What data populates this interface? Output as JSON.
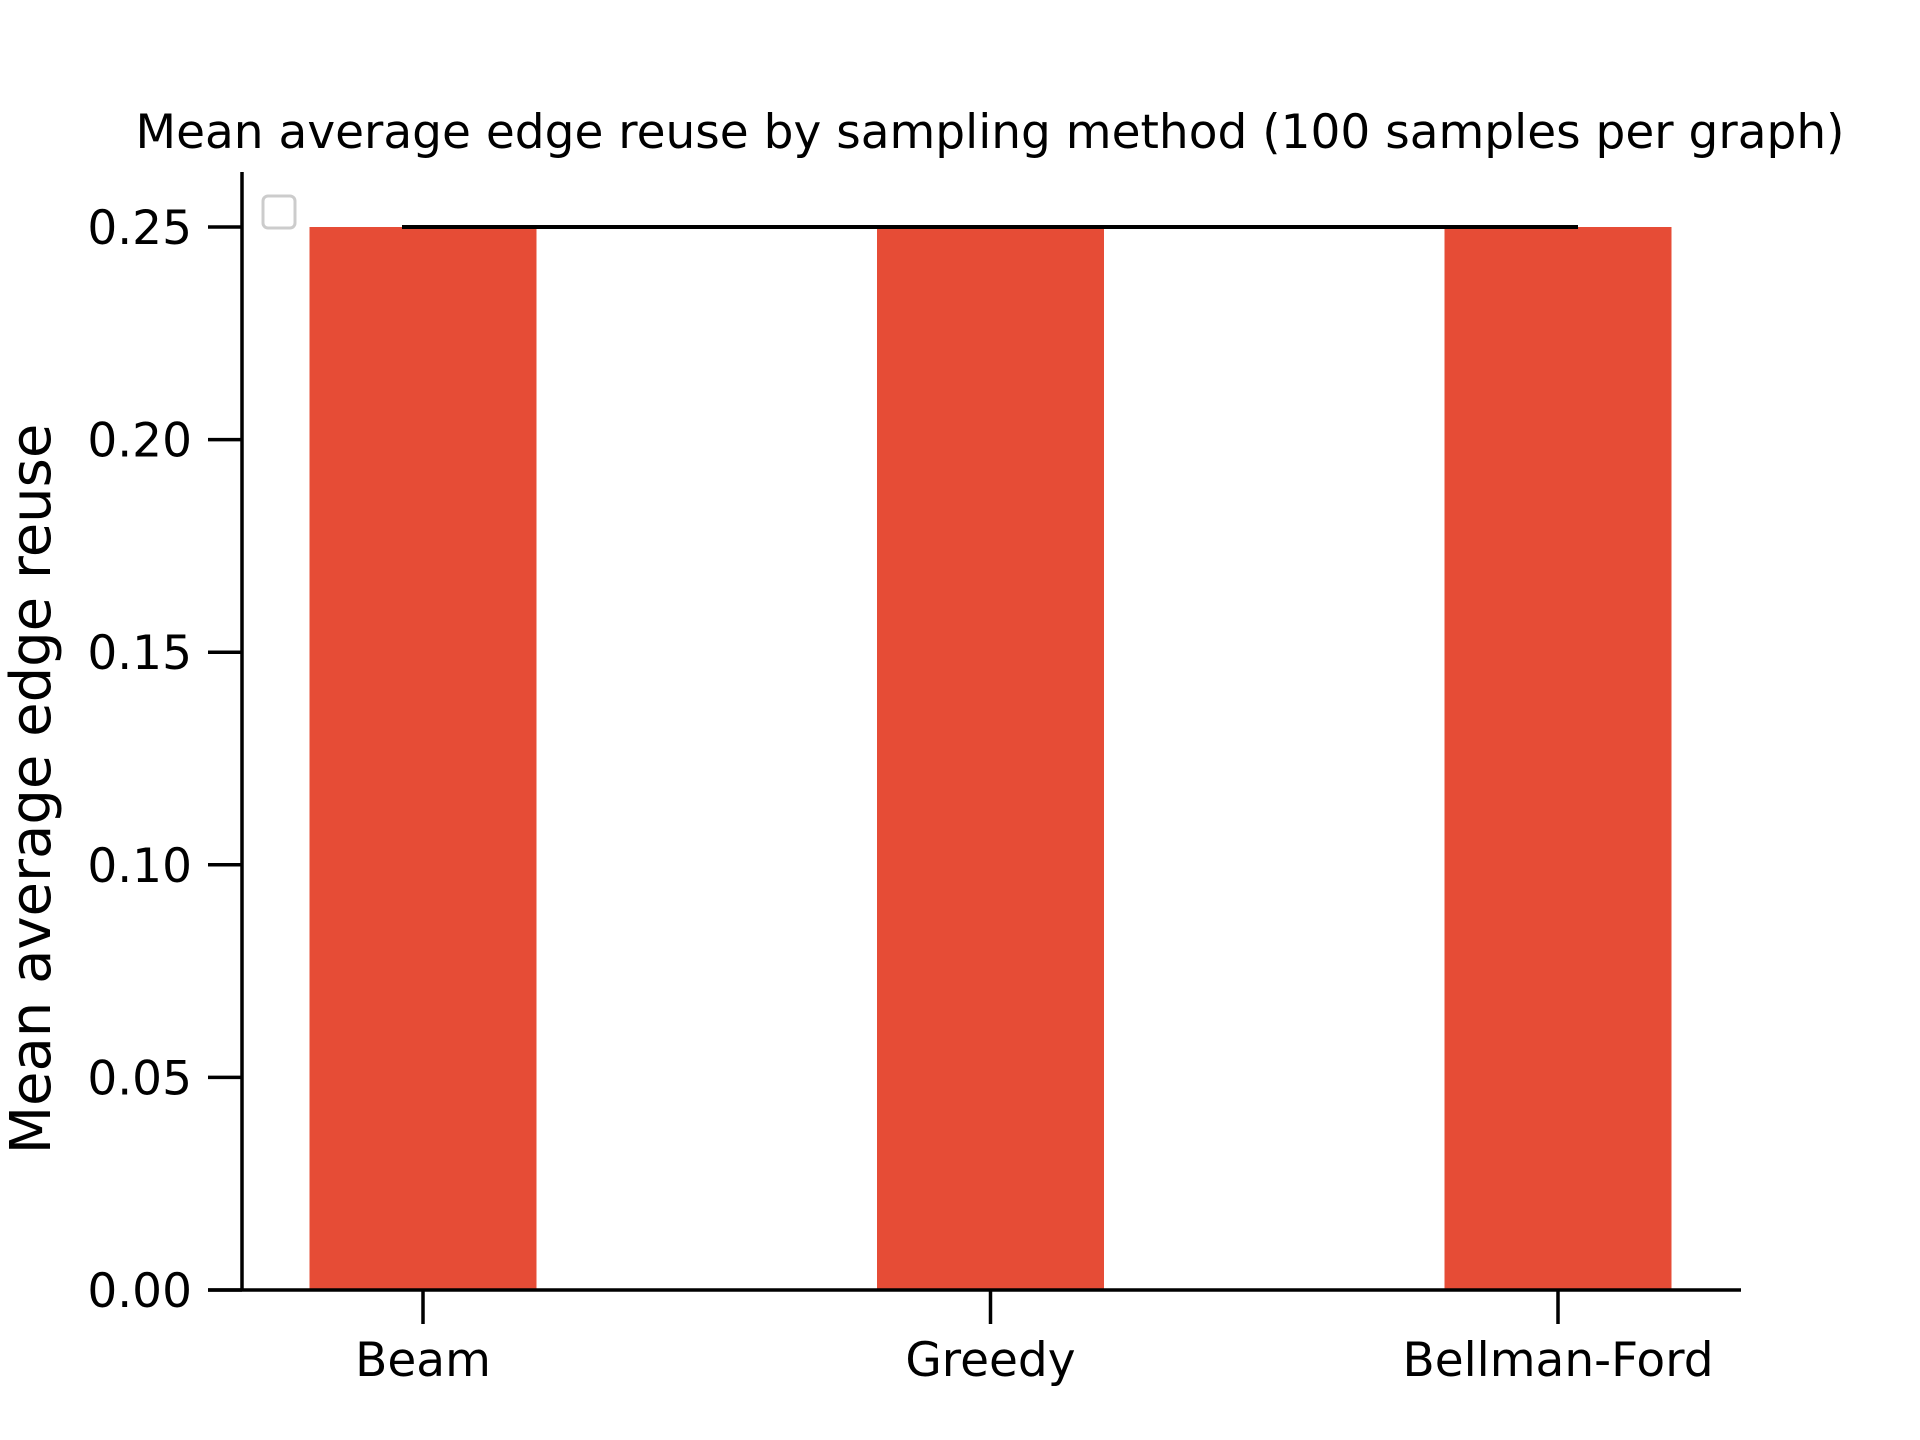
{
  "chart_data": {
    "type": "bar",
    "title": "Mean average edge reuse by sampling method (100 samples per graph)",
    "xlabel": "",
    "ylabel": "Mean average edge reuse",
    "categories": [
      "Beam",
      "Greedy",
      "Bellman-Ford"
    ],
    "values": [
      0.25,
      0.25,
      0.25
    ],
    "ylim": [
      0,
      0.26
    ],
    "yticks": [
      "0.00",
      "0.05",
      "0.10",
      "0.15",
      "0.20",
      "0.25"
    ],
    "reference_line": {
      "y": 0.25
    },
    "legend": {
      "placement": "top-left",
      "entries": []
    },
    "grid": false,
    "colors": {
      "bar": "#e64c36",
      "line": "#000000"
    }
  }
}
